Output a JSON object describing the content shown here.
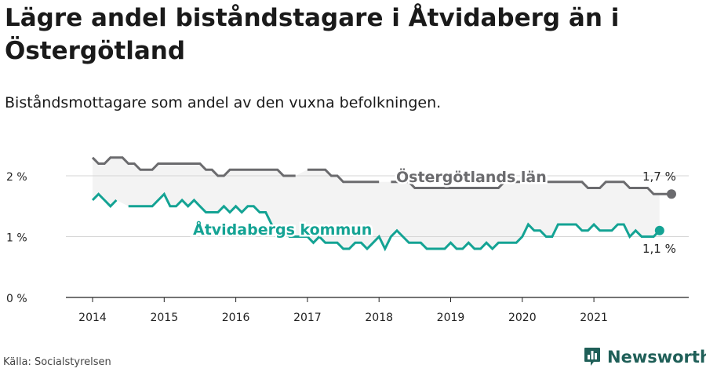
{
  "header": {
    "title": "Lägre andel biståndstagare i Åtvidaberg än i Östergötland",
    "subtitle": "Biståndsmottagare som andel av den vuxna befolkningen."
  },
  "footer": {
    "source": "Källa: Socialstyrelsen",
    "brand": "Newsworthy"
  },
  "colors": {
    "county": "#6b6b6e",
    "municipality": "#14a394",
    "band": "#f3f3f3",
    "brand": "#1f5f58"
  },
  "icons": {
    "brand_logo": "bar-chart-logo-icon"
  },
  "chart_data": {
    "type": "line",
    "title": "Lägre andel biståndstagare i Åtvidaberg än i Östergötland",
    "subtitle": "Biståndsmottagare som andel av den vuxna befolkningen.",
    "x_ticks": [
      "2014",
      "2015",
      "2016",
      "2017",
      "2018",
      "2019",
      "2020",
      "2021"
    ],
    "y_ticks": [
      "0 %",
      "1 %",
      "2 %"
    ],
    "ylim": [
      0,
      2.4
    ],
    "xlim": [
      2014.0,
      2022.0
    ],
    "grid": "horizontal",
    "series": [
      {
        "name": "Östergötlands län",
        "end_label": "1,7 %",
        "points": [
          [
            2014.0,
            2.3
          ],
          [
            2014.083,
            2.2
          ],
          [
            2014.167,
            2.2
          ],
          [
            2014.25,
            2.3
          ],
          [
            2014.333,
            2.3
          ],
          [
            2014.417,
            2.3
          ],
          [
            2014.5,
            2.2
          ],
          [
            2014.583,
            2.2
          ],
          [
            2014.667,
            2.1
          ],
          [
            2014.75,
            2.1
          ],
          [
            2014.833,
            2.1
          ],
          [
            2014.917,
            2.2
          ],
          [
            2015.0,
            2.2
          ],
          [
            2015.083,
            2.2
          ],
          [
            2015.167,
            2.2
          ],
          [
            2015.25,
            2.2
          ],
          [
            2015.333,
            2.2
          ],
          [
            2015.417,
            2.2
          ],
          [
            2015.5,
            2.2
          ],
          [
            2015.583,
            2.1
          ],
          [
            2015.667,
            2.1
          ],
          [
            2015.75,
            2.0
          ],
          [
            2015.833,
            2.0
          ],
          [
            2015.917,
            2.1
          ],
          [
            2016.0,
            2.1
          ],
          [
            2016.083,
            2.1
          ],
          [
            2016.167,
            2.1
          ],
          [
            2016.25,
            2.1
          ],
          [
            2016.333,
            2.1
          ],
          [
            2016.417,
            2.1
          ],
          [
            2016.5,
            2.1
          ],
          [
            2016.583,
            2.1
          ],
          [
            2016.667,
            2.0
          ],
          [
            2016.75,
            2.0
          ],
          [
            2016.833,
            2.0
          ],
          [
            2016.917,
            null
          ],
          [
            2017.0,
            2.1
          ],
          [
            2017.083,
            2.1
          ],
          [
            2017.167,
            2.1
          ],
          [
            2017.25,
            2.1
          ],
          [
            2017.333,
            2.0
          ],
          [
            2017.417,
            2.0
          ],
          [
            2017.5,
            1.9
          ],
          [
            2017.583,
            1.9
          ],
          [
            2017.667,
            1.9
          ],
          [
            2017.75,
            1.9
          ],
          [
            2017.833,
            1.9
          ],
          [
            2017.917,
            1.9
          ],
          [
            2018.0,
            1.9
          ],
          [
            2018.083,
            null
          ],
          [
            2018.167,
            1.9
          ],
          [
            2018.25,
            1.9
          ],
          [
            2018.333,
            1.9
          ],
          [
            2018.417,
            1.9
          ],
          [
            2018.5,
            1.8
          ],
          [
            2018.583,
            1.8
          ],
          [
            2018.667,
            1.8
          ],
          [
            2018.75,
            1.8
          ],
          [
            2018.833,
            1.8
          ],
          [
            2018.917,
            1.8
          ],
          [
            2019.0,
            1.8
          ],
          [
            2019.083,
            1.8
          ],
          [
            2019.167,
            1.8
          ],
          [
            2019.25,
            1.8
          ],
          [
            2019.333,
            1.8
          ],
          [
            2019.417,
            1.8
          ],
          [
            2019.5,
            1.8
          ],
          [
            2019.583,
            1.8
          ],
          [
            2019.667,
            1.8
          ],
          [
            2019.75,
            1.9
          ],
          [
            2019.833,
            1.9
          ],
          [
            2019.917,
            1.9
          ],
          [
            2020.0,
            1.9
          ],
          [
            2020.083,
            1.9
          ],
          [
            2020.167,
            1.9
          ],
          [
            2020.25,
            1.9
          ],
          [
            2020.333,
            1.9
          ],
          [
            2020.417,
            1.9
          ],
          [
            2020.5,
            1.9
          ],
          [
            2020.583,
            1.9
          ],
          [
            2020.667,
            1.9
          ],
          [
            2020.75,
            1.9
          ],
          [
            2020.833,
            1.9
          ],
          [
            2020.917,
            1.8
          ],
          [
            2021.0,
            1.8
          ],
          [
            2021.083,
            1.8
          ],
          [
            2021.167,
            1.9
          ],
          [
            2021.25,
            1.9
          ],
          [
            2021.333,
            1.9
          ],
          [
            2021.417,
            1.9
          ],
          [
            2021.5,
            1.8
          ],
          [
            2021.583,
            1.8
          ],
          [
            2021.667,
            1.8
          ],
          [
            2021.75,
            1.8
          ],
          [
            2021.833,
            1.7
          ],
          [
            2021.917,
            1.7
          ],
          [
            2022.0,
            1.7
          ],
          [
            2022.083,
            1.7
          ]
        ]
      },
      {
        "name": "Åtvidabergs kommun",
        "end_label": "1,1 %",
        "points": [
          [
            2014.0,
            1.6
          ],
          [
            2014.083,
            1.7
          ],
          [
            2014.167,
            1.6
          ],
          [
            2014.25,
            1.5
          ],
          [
            2014.333,
            1.6
          ],
          [
            2014.417,
            null
          ],
          [
            2014.5,
            1.5
          ],
          [
            2014.583,
            1.5
          ],
          [
            2014.667,
            1.5
          ],
          [
            2014.75,
            1.5
          ],
          [
            2014.833,
            1.5
          ],
          [
            2014.917,
            1.6
          ],
          [
            2015.0,
            1.7
          ],
          [
            2015.083,
            1.5
          ],
          [
            2015.167,
            1.5
          ],
          [
            2015.25,
            1.6
          ],
          [
            2015.333,
            1.5
          ],
          [
            2015.417,
            1.6
          ],
          [
            2015.5,
            1.5
          ],
          [
            2015.583,
            1.4
          ],
          [
            2015.667,
            1.4
          ],
          [
            2015.75,
            1.4
          ],
          [
            2015.833,
            1.5
          ],
          [
            2015.917,
            1.4
          ],
          [
            2016.0,
            1.5
          ],
          [
            2016.083,
            1.4
          ],
          [
            2016.167,
            1.5
          ],
          [
            2016.25,
            1.5
          ],
          [
            2016.333,
            1.4
          ],
          [
            2016.417,
            1.4
          ],
          [
            2016.5,
            1.2
          ],
          [
            2016.583,
            1.1
          ],
          [
            2016.667,
            1.1
          ],
          [
            2016.75,
            1.0
          ],
          [
            2016.833,
            1.0
          ],
          [
            2016.917,
            1.0
          ],
          [
            2017.0,
            1.0
          ],
          [
            2017.083,
            0.9
          ],
          [
            2017.167,
            1.0
          ],
          [
            2017.25,
            0.9
          ],
          [
            2017.333,
            0.9
          ],
          [
            2017.417,
            0.9
          ],
          [
            2017.5,
            0.8
          ],
          [
            2017.583,
            0.8
          ],
          [
            2017.667,
            0.9
          ],
          [
            2017.75,
            0.9
          ],
          [
            2017.833,
            0.8
          ],
          [
            2017.917,
            0.9
          ],
          [
            2018.0,
            1.0
          ],
          [
            2018.083,
            0.8
          ],
          [
            2018.167,
            1.0
          ],
          [
            2018.25,
            1.1
          ],
          [
            2018.333,
            1.0
          ],
          [
            2018.417,
            0.9
          ],
          [
            2018.5,
            0.9
          ],
          [
            2018.583,
            0.9
          ],
          [
            2018.667,
            0.8
          ],
          [
            2018.75,
            0.8
          ],
          [
            2018.833,
            0.8
          ],
          [
            2018.917,
            0.8
          ],
          [
            2019.0,
            0.9
          ],
          [
            2019.083,
            0.8
          ],
          [
            2019.167,
            0.8
          ],
          [
            2019.25,
            0.9
          ],
          [
            2019.333,
            0.8
          ],
          [
            2019.417,
            0.8
          ],
          [
            2019.5,
            0.9
          ],
          [
            2019.583,
            0.8
          ],
          [
            2019.667,
            0.9
          ],
          [
            2019.75,
            0.9
          ],
          [
            2019.833,
            0.9
          ],
          [
            2019.917,
            0.9
          ],
          [
            2020.0,
            1.0
          ],
          [
            2020.083,
            1.2
          ],
          [
            2020.167,
            1.1
          ],
          [
            2020.25,
            1.1
          ],
          [
            2020.333,
            1.0
          ],
          [
            2020.417,
            1.0
          ],
          [
            2020.5,
            1.2
          ],
          [
            2020.583,
            1.2
          ],
          [
            2020.667,
            1.2
          ],
          [
            2020.75,
            1.2
          ],
          [
            2020.833,
            1.1
          ],
          [
            2020.917,
            1.1
          ],
          [
            2021.0,
            1.2
          ],
          [
            2021.083,
            1.1
          ],
          [
            2021.167,
            1.1
          ],
          [
            2021.25,
            1.1
          ],
          [
            2021.333,
            1.2
          ],
          [
            2021.417,
            1.2
          ],
          [
            2021.5,
            1.0
          ],
          [
            2021.583,
            1.1
          ],
          [
            2021.667,
            1.0
          ],
          [
            2021.75,
            1.0
          ],
          [
            2021.833,
            1.0
          ],
          [
            2021.917,
            1.1
          ]
        ]
      }
    ]
  }
}
